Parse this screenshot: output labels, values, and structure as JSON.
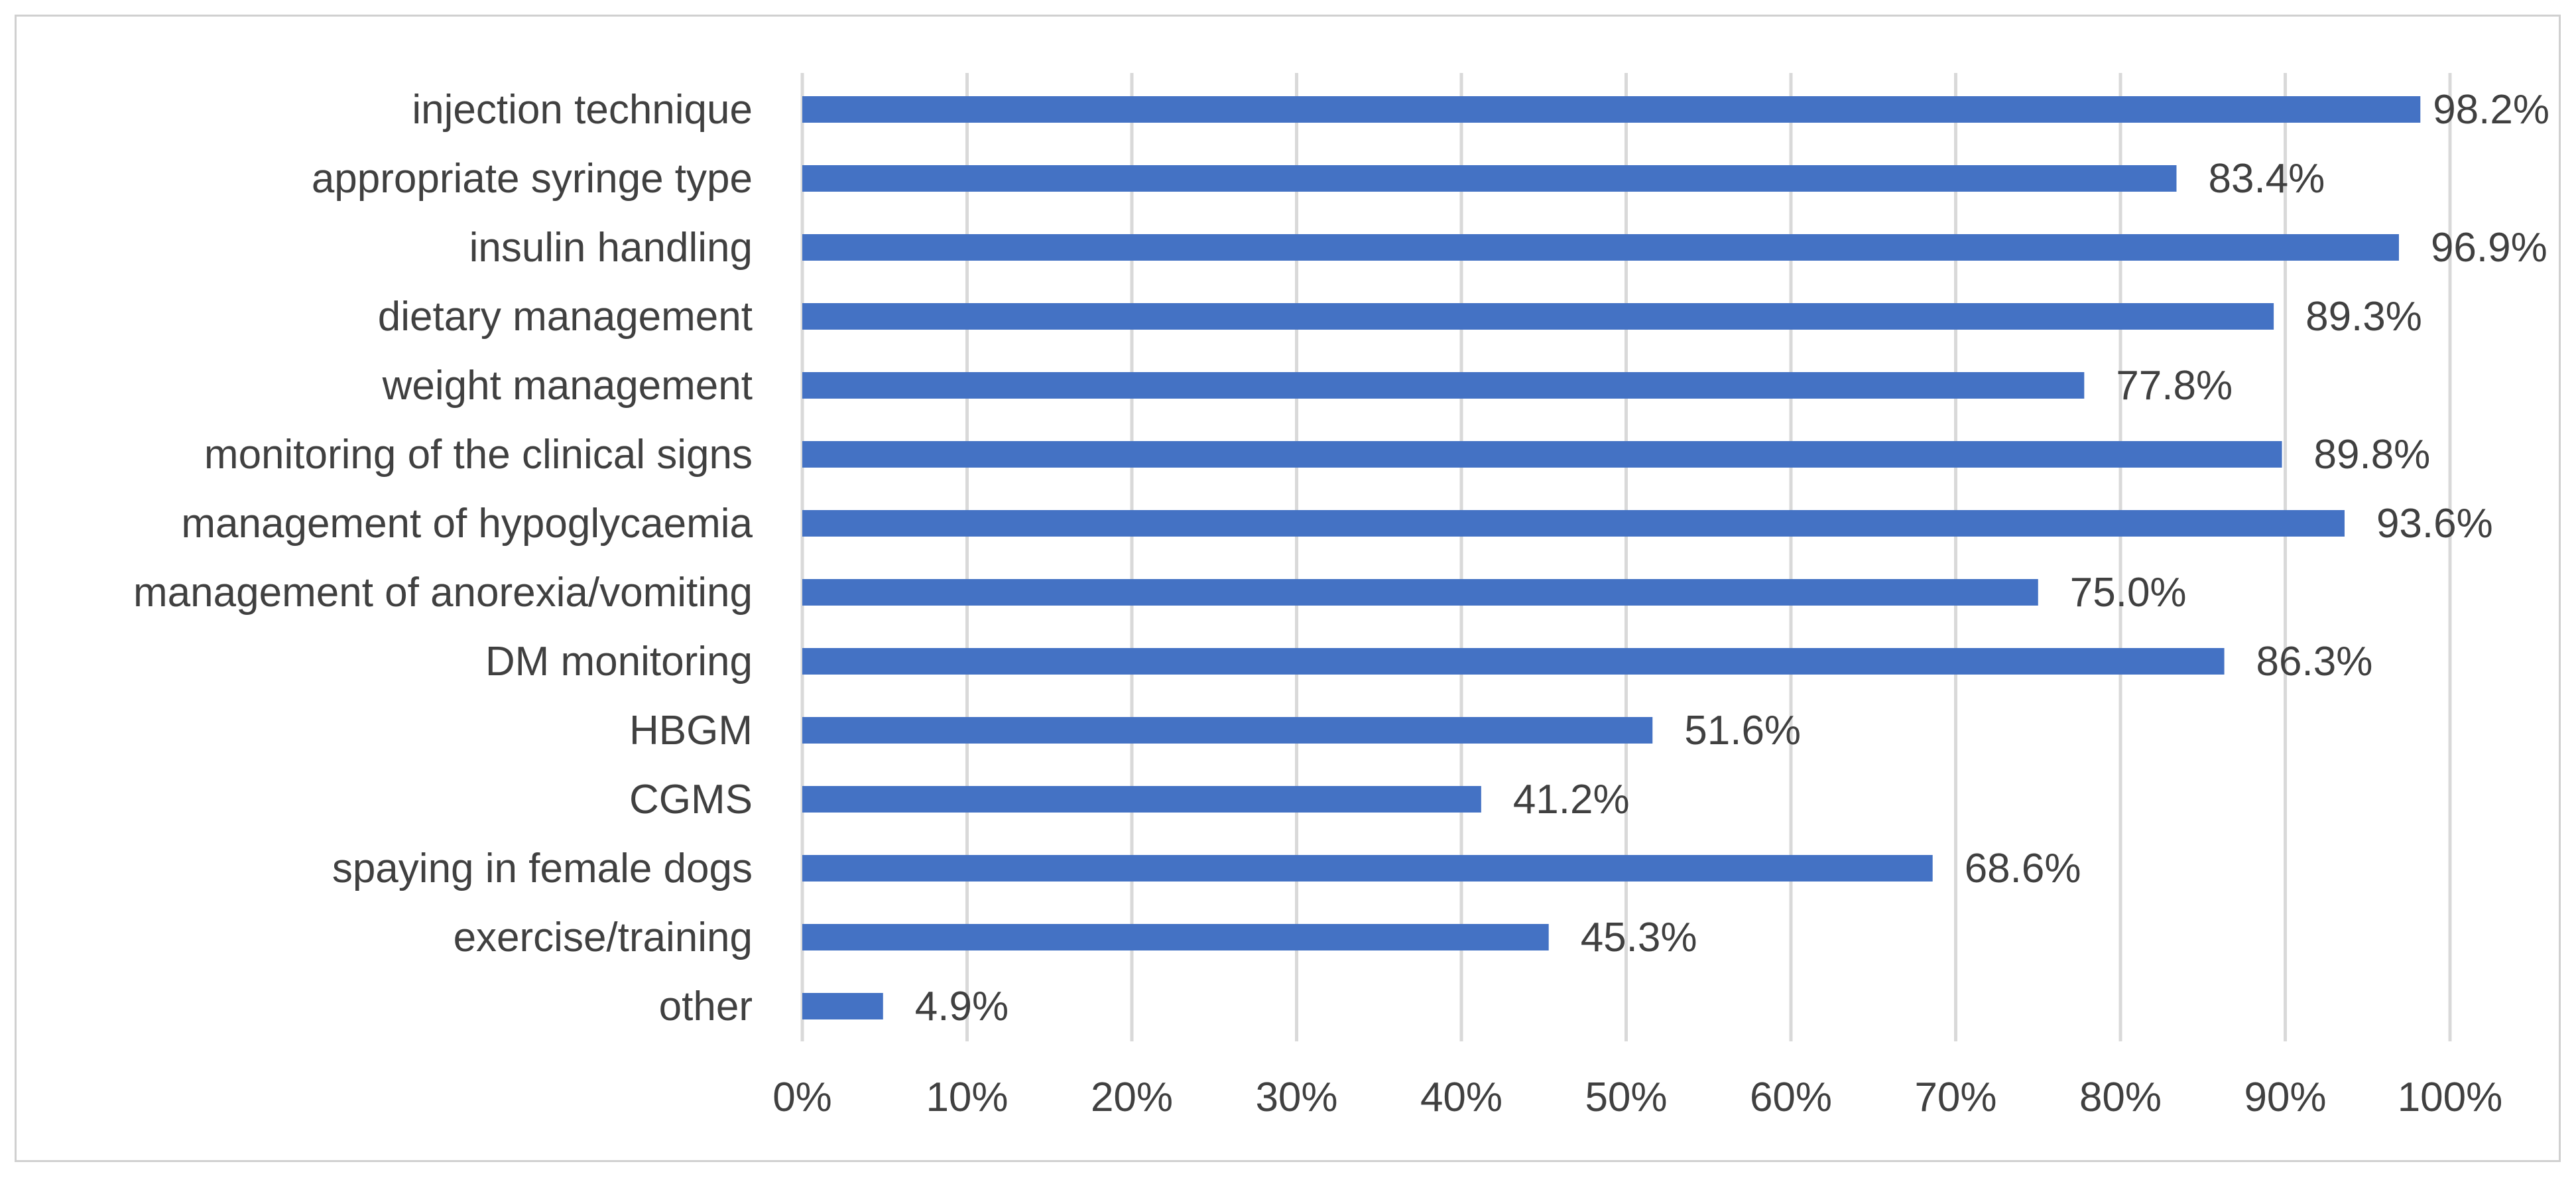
{
  "chart_data": {
    "type": "bar",
    "orientation": "horizontal",
    "categories": [
      "injection technique",
      "appropriate syringe type",
      "insulin handling",
      "dietary management",
      "weight management",
      "monitoring of the clinical signs",
      "management of hypoglycaemia",
      "management of anorexia/vomiting",
      "DM monitoring",
      "HBGM",
      "CGMS",
      "spaying in female dogs",
      "exercise/training",
      "other"
    ],
    "values": [
      98.2,
      83.4,
      96.9,
      89.3,
      77.8,
      89.8,
      93.6,
      75.0,
      86.3,
      51.6,
      41.2,
      68.6,
      45.3,
      4.9
    ],
    "value_labels": [
      "98.2%",
      "83.4%",
      "96.9%",
      "89.3%",
      "77.8%",
      "89.8%",
      "93.6%",
      "75.0%",
      "86.3%",
      "51.6%",
      "41.2%",
      "68.6%",
      "45.3%",
      "4.9%"
    ],
    "xticks": [
      "0%",
      "10%",
      "20%",
      "30%",
      "40%",
      "50%",
      "60%",
      "70%",
      "80%",
      "90%",
      "100%"
    ],
    "xlim": [
      0,
      100
    ],
    "grid": "vertical",
    "legend": "none",
    "colors": {
      "bar": "#4472c4",
      "grid": "#d9d9d9",
      "text": "#404040",
      "border": "#d0d0d0"
    }
  }
}
